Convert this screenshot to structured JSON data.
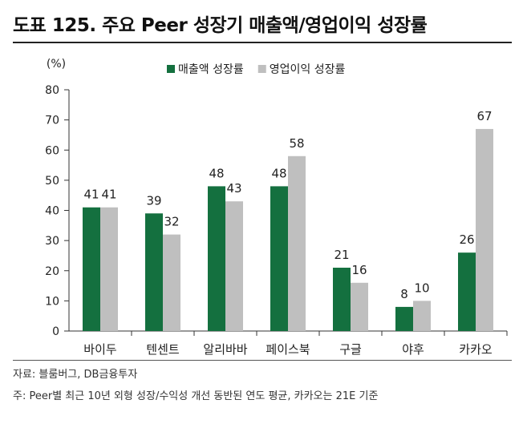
{
  "title": "도표 125. 주요 Peer 성장기 매출액/영업이익 성장률",
  "source": "자료: 블룸버그, DB금융투자",
  "note": "주: Peer별 최근 10년 외형 성장/수익성 개선 동반된 연도 평균, 카카오는 21E 기준",
  "colors": {
    "revenue": "#14703f",
    "op_income": "#bfbfbf"
  },
  "chart_data": {
    "type": "bar",
    "ylabel": "(%)",
    "ylim": [
      0,
      80
    ],
    "yticks": [
      "0",
      "10",
      "20",
      "30",
      "40",
      "50",
      "60",
      "70",
      "80"
    ],
    "categories": [
      "바이두",
      "텐센트",
      "알리바바",
      "페이스북",
      "구글",
      "야후",
      "카카오"
    ],
    "series": [
      {
        "name": "매출액 성장률",
        "values": [
          41,
          39,
          48,
          48,
          21,
          8,
          26
        ]
      },
      {
        "name": "영업이익 성장률",
        "values": [
          41,
          32,
          43,
          58,
          16,
          10,
          67
        ]
      }
    ],
    "legend_position": "top-center",
    "grid": false
  }
}
